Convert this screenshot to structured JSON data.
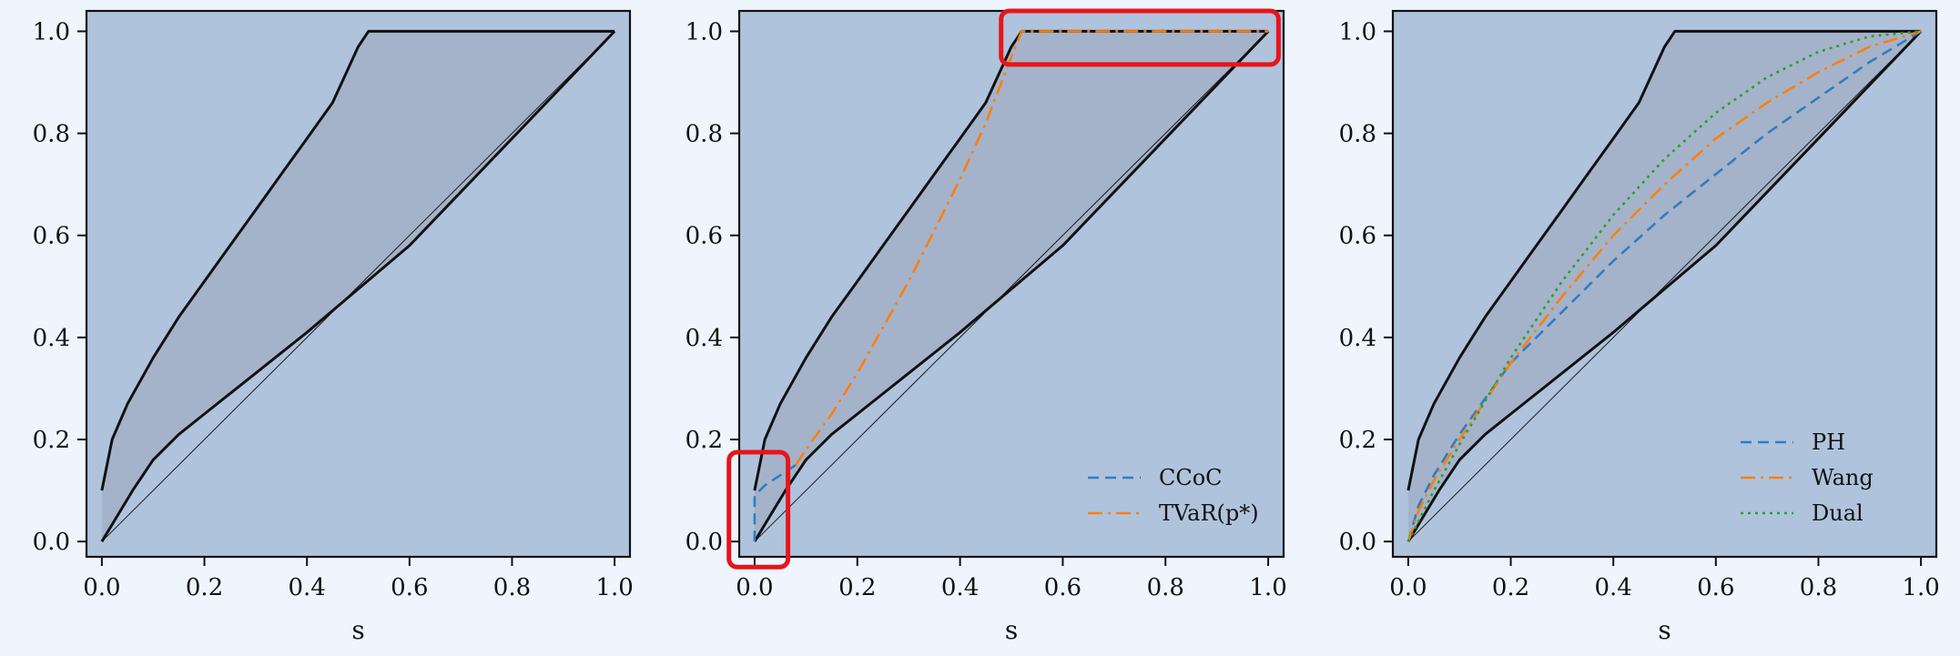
{
  "figure": {
    "background": "#eef5fc",
    "panel_bg": "#afc3dc",
    "band_fill": "#a4b3ca",
    "highlight_color": "#e8141b"
  },
  "chart_data": [
    {
      "type": "line",
      "xlabel": "s",
      "xlim": [
        0,
        1
      ],
      "ylim": [
        0,
        1
      ],
      "x_ticks": [
        "0.0",
        "0.2",
        "0.4",
        "0.6",
        "0.8",
        "1.0"
      ],
      "y_ticks": [
        "0.0",
        "0.2",
        "0.4",
        "0.6",
        "0.8",
        "1.0"
      ],
      "bounds": {
        "upper": {
          "x": [
            0.0,
            0.02,
            0.05,
            0.1,
            0.15,
            0.2,
            0.25,
            0.3,
            0.35,
            0.4,
            0.45,
            0.5,
            0.52,
            1.0
          ],
          "y": [
            0.1,
            0.2,
            0.27,
            0.36,
            0.44,
            0.51,
            0.58,
            0.65,
            0.72,
            0.79,
            0.86,
            0.97,
            1.0,
            1.0
          ]
        },
        "lower": {
          "x": [
            0.0,
            0.03,
            0.06,
            0.1,
            0.15,
            0.2,
            0.4,
            0.6,
            0.8,
            1.0
          ],
          "y": [
            0.0,
            0.05,
            0.1,
            0.16,
            0.21,
            0.25,
            0.41,
            0.58,
            0.79,
            1.0
          ]
        },
        "diagonal": {
          "x": [
            0.0,
            1.0
          ],
          "y": [
            0.0,
            1.0
          ]
        }
      },
      "series": []
    },
    {
      "type": "line",
      "xlabel": "s",
      "xlim": [
        0,
        1
      ],
      "ylim": [
        0,
        1
      ],
      "x_ticks": [
        "0.0",
        "0.2",
        "0.4",
        "0.6",
        "0.8",
        "1.0"
      ],
      "y_ticks": [
        "0.0",
        "0.2",
        "0.4",
        "0.6",
        "0.8",
        "1.0"
      ],
      "bounds": {
        "upper": {
          "x": [
            0.0,
            0.02,
            0.05,
            0.1,
            0.15,
            0.2,
            0.25,
            0.3,
            0.35,
            0.4,
            0.45,
            0.5,
            0.52,
            1.0
          ],
          "y": [
            0.1,
            0.2,
            0.27,
            0.36,
            0.44,
            0.51,
            0.58,
            0.65,
            0.72,
            0.79,
            0.86,
            0.97,
            1.0,
            1.0
          ]
        },
        "lower": {
          "x": [
            0.0,
            0.03,
            0.06,
            0.1,
            0.15,
            0.2,
            0.4,
            0.6,
            0.8,
            1.0
          ],
          "y": [
            0.0,
            0.05,
            0.1,
            0.16,
            0.21,
            0.25,
            0.41,
            0.58,
            0.79,
            1.0
          ]
        },
        "diagonal": {
          "x": [
            0.0,
            1.0
          ],
          "y": [
            0.0,
            1.0
          ]
        }
      },
      "series": [
        {
          "name": "CCoC",
          "color": "#2f7dbf",
          "dash": "dashed",
          "x": [
            0.0,
            0.0,
            0.02,
            0.05,
            0.08
          ],
          "y": [
            0.0,
            0.09,
            0.11,
            0.13,
            0.15
          ]
        },
        {
          "name": "TVaR(p*)",
          "color": "#ff7f0e",
          "dash": "dashdot",
          "x": [
            0.08,
            0.1,
            0.15,
            0.2,
            0.25,
            0.3,
            0.35,
            0.4,
            0.45,
            0.5,
            0.52,
            1.0
          ],
          "y": [
            0.15,
            0.18,
            0.25,
            0.33,
            0.42,
            0.51,
            0.61,
            0.71,
            0.82,
            0.95,
            1.0,
            1.0
          ]
        }
      ],
      "legend": "lower-right",
      "highlights": [
        {
          "x0": -0.05,
          "x1": 0.065,
          "y0": -0.05,
          "y1": 0.175
        },
        {
          "x0": 0.48,
          "x1": 1.02,
          "y0": 0.935,
          "y1": 1.04
        }
      ]
    },
    {
      "type": "line",
      "xlabel": "s",
      "xlim": [
        0,
        1
      ],
      "ylim": [
        0,
        1
      ],
      "x_ticks": [
        "0.0",
        "0.2",
        "0.4",
        "0.6",
        "0.8",
        "1.0"
      ],
      "y_ticks": [
        "0.0",
        "0.2",
        "0.4",
        "0.6",
        "0.8",
        "1.0"
      ],
      "bounds": {
        "upper": {
          "x": [
            0.0,
            0.02,
            0.05,
            0.1,
            0.15,
            0.2,
            0.25,
            0.3,
            0.35,
            0.4,
            0.45,
            0.5,
            0.52,
            1.0
          ],
          "y": [
            0.1,
            0.2,
            0.27,
            0.36,
            0.44,
            0.51,
            0.58,
            0.65,
            0.72,
            0.79,
            0.86,
            0.97,
            1.0,
            1.0
          ]
        },
        "lower": {
          "x": [
            0.0,
            0.03,
            0.06,
            0.1,
            0.15,
            0.2,
            0.4,
            0.6,
            0.8,
            1.0
          ],
          "y": [
            0.0,
            0.05,
            0.1,
            0.16,
            0.21,
            0.25,
            0.41,
            0.58,
            0.79,
            1.0
          ]
        },
        "diagonal": {
          "x": [
            0.0,
            1.0
          ],
          "y": [
            0.0,
            1.0
          ]
        }
      },
      "series": [
        {
          "name": "PH",
          "color": "#2f7dbf",
          "dash": "dashed",
          "x": [
            0.0,
            0.02,
            0.05,
            0.1,
            0.2,
            0.3,
            0.4,
            0.5,
            0.6,
            0.7,
            0.8,
            0.9,
            1.0
          ],
          "y": [
            0.0,
            0.07,
            0.13,
            0.21,
            0.35,
            0.45,
            0.55,
            0.64,
            0.72,
            0.8,
            0.87,
            0.94,
            1.0
          ]
        },
        {
          "name": "Wang",
          "color": "#ff7f0e",
          "dash": "dashdot",
          "x": [
            0.0,
            0.02,
            0.05,
            0.1,
            0.2,
            0.3,
            0.4,
            0.5,
            0.6,
            0.7,
            0.8,
            0.9,
            1.0
          ],
          "y": [
            0.0,
            0.06,
            0.12,
            0.2,
            0.35,
            0.48,
            0.6,
            0.7,
            0.79,
            0.86,
            0.92,
            0.97,
            1.0
          ]
        },
        {
          "name": "Dual",
          "color": "#2ca02c",
          "dash": "dotted",
          "x": [
            0.0,
            0.02,
            0.05,
            0.1,
            0.2,
            0.3,
            0.4,
            0.5,
            0.6,
            0.7,
            0.8,
            0.9,
            1.0
          ],
          "y": [
            0.0,
            0.04,
            0.1,
            0.19,
            0.36,
            0.51,
            0.64,
            0.75,
            0.84,
            0.91,
            0.96,
            0.99,
            1.0
          ]
        }
      ],
      "legend": "lower-right"
    }
  ]
}
